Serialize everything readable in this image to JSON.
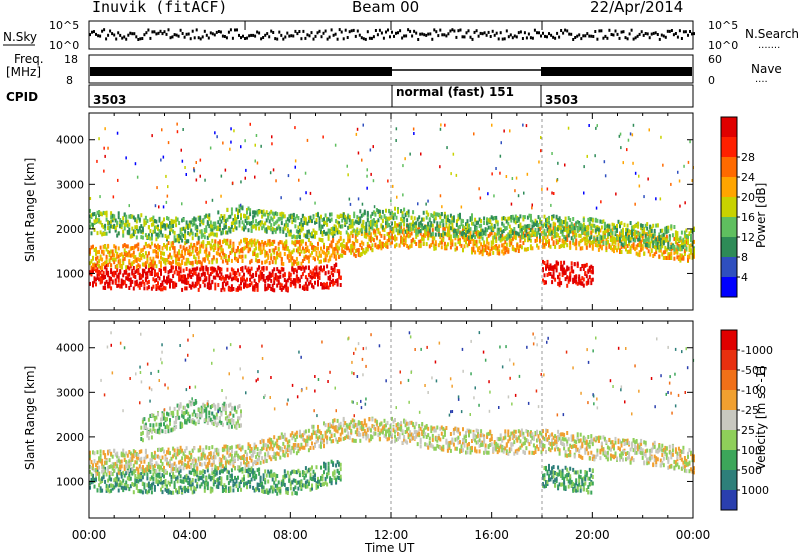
{
  "header": {
    "title": "Inuvik (fitACF)",
    "beam": "Beam 00",
    "date": "22/Apr/2014"
  },
  "nsky_panel": {
    "left_label": "N.Sky",
    "left_ticks": [
      "10^5",
      "10^0"
    ],
    "right_ticks": [
      "10^5",
      "10^0"
    ],
    "right_label": "N.Search",
    "right_legend": "......."
  },
  "freq_panel": {
    "label_lines": [
      "Freq.",
      "[MHz]"
    ],
    "left_ticks": [
      "18",
      "8"
    ],
    "right_ticks": [
      "60",
      "0"
    ],
    "right_label": "Nave",
    "right_legend": "...."
  },
  "cpid_panel": {
    "label": "CPID",
    "segments": [
      "3503",
      "normal (fast) 151",
      "3503"
    ]
  },
  "colors": {
    "power": [
      "#0000ff",
      "#2f4fbf",
      "#2e8b57",
      "#5fbf5f",
      "#c8d200",
      "#ffa500",
      "#ff6a00",
      "#ff2000",
      "#e00000"
    ],
    "velocity": [
      "#2a3fae",
      "#2e7f7a",
      "#3ca65a",
      "#8fcf5a",
      "#c8c8c0",
      "#f0a030",
      "#f07018",
      "#e83010",
      "#e00000"
    ]
  },
  "chart_data": [
    {
      "type": "heatmap",
      "panel": "power",
      "xlabel": "Time UT",
      "ylabel": "Slant Range [km]",
      "x_ticks": [
        "00:00",
        "04:00",
        "08:00",
        "12:00",
        "16:00",
        "20:00",
        "00:00"
      ],
      "y_ticks": [
        1000,
        2000,
        3000,
        4000
      ],
      "xlim_hours": [
        0,
        24
      ],
      "ylim_km": [
        180,
        4600
      ],
      "colorbar_label": "Power [dB]",
      "colorbar_ticks": [
        4,
        8,
        12,
        16,
        20,
        24,
        28
      ],
      "bands": [
        {
          "t": [
            0,
            2,
            4,
            6,
            8,
            10,
            12,
            14,
            16,
            18,
            20,
            22,
            24
          ],
          "range": [
            980,
            950,
            930,
            930,
            920,
            1000,
            null,
            null,
            null,
            1050,
            1000,
            null,
            null
          ],
          "level": 8
        },
        {
          "t": [
            0,
            2,
            4,
            6,
            8,
            10,
            12,
            14,
            16,
            18,
            20,
            22,
            24
          ],
          "range": [
            1400,
            1450,
            1500,
            1550,
            1500,
            1600,
            1900,
            1850,
            1700,
            1900,
            1850,
            1700,
            1550
          ],
          "level": 5
        },
        {
          "t": [
            0,
            2,
            4,
            6,
            8,
            10,
            12,
            14,
            16,
            18,
            20,
            22,
            24
          ],
          "range": [
            2200,
            2100,
            2000,
            2300,
            2100,
            2150,
            2250,
            2150,
            2050,
            2100,
            2000,
            1900,
            1800
          ],
          "level": 3
        }
      ]
    },
    {
      "type": "heatmap",
      "panel": "velocity",
      "xlabel": "Time UT",
      "ylabel": "Slant Range [km]",
      "x_ticks": [
        "00:00",
        "04:00",
        "08:00",
        "12:00",
        "16:00",
        "20:00",
        "00:00"
      ],
      "y_ticks": [
        1000,
        2000,
        3000,
        4000
      ],
      "xlim_hours": [
        0,
        24
      ],
      "ylim_km": [
        180,
        4600
      ],
      "colorbar_label": "Velocity [m s^-1]",
      "colorbar_ticks": [
        "1000",
        "500",
        "100",
        "25",
        "-25",
        "-100",
        "-500",
        "-1000"
      ],
      "bands": [
        {
          "t": [
            0,
            2,
            4,
            6,
            8,
            10,
            12,
            14,
            16,
            18,
            20,
            22,
            24
          ],
          "range": [
            1100,
            1050,
            1050,
            1100,
            1000,
            1300,
            null,
            null,
            null,
            1150,
            1050,
            null,
            null
          ],
          "level": 2
        },
        {
          "t": [
            0,
            2,
            4,
            6,
            8,
            10,
            12,
            14,
            16,
            18,
            20,
            22,
            24
          ],
          "range": [
            1450,
            1500,
            1550,
            1600,
            1900,
            2200,
            2200,
            2000,
            1900,
            1950,
            1800,
            1700,
            1500
          ],
          "level": 4
        },
        {
          "t": [
            0,
            2,
            4,
            6,
            8,
            10,
            12,
            14,
            16,
            18,
            20,
            22,
            24
          ],
          "range": [
            null,
            2200,
            2600,
            2500,
            null,
            null,
            null,
            null,
            null,
            null,
            null,
            null,
            null
          ],
          "level": 3
        }
      ]
    }
  ]
}
